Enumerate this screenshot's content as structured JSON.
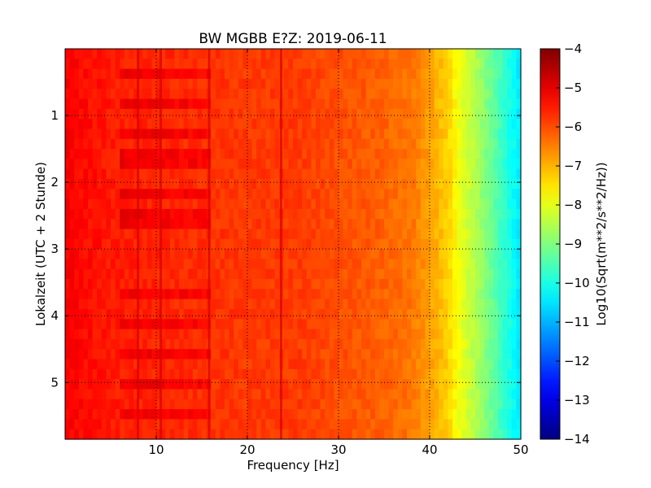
{
  "chart_data": {
    "type": "heatmap",
    "title": "BW MGBB E?Z: 2019-06-11",
    "xlabel": "Frequency [Hz]",
    "ylabel": "Lokalzeit (UTC + 2 Stunde)",
    "xlim": [
      0,
      50
    ],
    "ylim": [
      5.85,
      0.0
    ],
    "y_inverted": true,
    "x_ticks": [
      10,
      20,
      30,
      40,
      50
    ],
    "x_tick_labels": [
      "10",
      "20",
      "30",
      "40",
      "50"
    ],
    "y_ticks": [
      1,
      2,
      3,
      4,
      5
    ],
    "y_tick_labels": [
      "1",
      "2",
      "3",
      "4",
      "5"
    ],
    "grid": true,
    "grid_style": "dotted",
    "colormap": "jet",
    "colorbar": {
      "label": "Log10(Sqrt(m**2/s**2/Hz))",
      "range": [
        -14,
        -4
      ],
      "ticks": [
        -4,
        -5,
        -6,
        -7,
        -8,
        -9,
        -10,
        -11,
        -12,
        -13,
        -14
      ],
      "tick_labels": [
        "−4",
        "−5",
        "−6",
        "−7",
        "−8",
        "−9",
        "−10",
        "−11",
        "−12",
        "−13",
        "−14"
      ]
    },
    "spectrum_profile": {
      "frequency_hz": [
        0,
        5,
        10,
        15,
        20,
        25,
        30,
        35,
        38,
        40,
        42,
        43,
        45,
        47,
        49,
        50
      ],
      "log10_amplitude": [
        -5.2,
        -5.5,
        -5.6,
        -5.7,
        -5.8,
        -5.8,
        -6.0,
        -6.2,
        -6.4,
        -6.8,
        -7.3,
        -7.8,
        -8.5,
        -9.3,
        -10.1,
        -10.5
      ]
    },
    "line_features_hz": [
      8,
      10.5,
      15.8,
      23.7
    ],
    "horizontal_bands_hours": [
      0.35,
      0.85,
      1.25,
      1.65,
      2.15,
      2.55,
      3.65,
      4.15,
      4.55,
      5.0,
      5.45
    ]
  }
}
